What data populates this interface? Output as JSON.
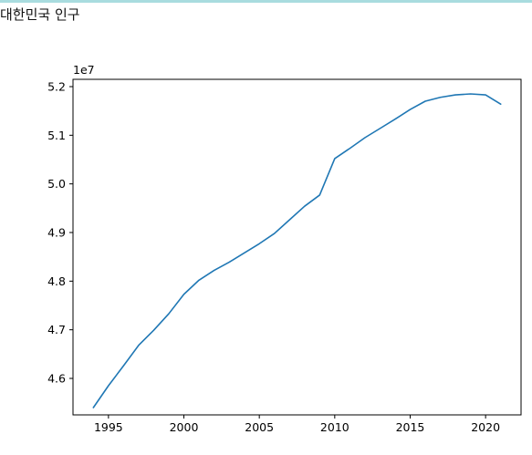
{
  "page": {
    "title": "대한민국 인구"
  },
  "chart_data": {
    "type": "line",
    "title": "",
    "xlabel": "",
    "ylabel": "",
    "offset_label": "1e7",
    "xlim": [
      1992.65,
      2022.35
    ],
    "ylim": [
      45.25,
      52.15
    ],
    "y_scale_note": "values in units of 1e6 shown on axis as multiples of 1e7 (offset label)",
    "x_ticks": [
      1995,
      2000,
      2005,
      2010,
      2015,
      2020
    ],
    "y_ticks": [
      "4.6",
      "4.7",
      "4.8",
      "4.9",
      "5.0",
      "5.1",
      "5.2"
    ],
    "y_tick_values": [
      46.0,
      47.0,
      48.0,
      49.0,
      50.0,
      51.0,
      52.0
    ],
    "grid": false,
    "series": [
      {
        "color": "#1f77b4",
        "x": [
          1994,
          1995,
          1996,
          1997,
          1998,
          1999,
          2000,
          2001,
          2002,
          2003,
          2004,
          2005,
          2006,
          2007,
          2008,
          2009,
          2010,
          2011,
          2012,
          2013,
          2014,
          2015,
          2016,
          2017,
          2018,
          2019,
          2020,
          2021
        ],
        "y": [
          45.4,
          45.85,
          46.26,
          46.68,
          46.99,
          47.33,
          47.73,
          48.02,
          48.22,
          48.39,
          48.58,
          48.77,
          48.98,
          49.26,
          49.54,
          49.77,
          50.52,
          50.73,
          50.95,
          51.14,
          51.33,
          51.53,
          51.7,
          51.78,
          51.83,
          51.85,
          51.83,
          51.64
        ]
      }
    ]
  }
}
